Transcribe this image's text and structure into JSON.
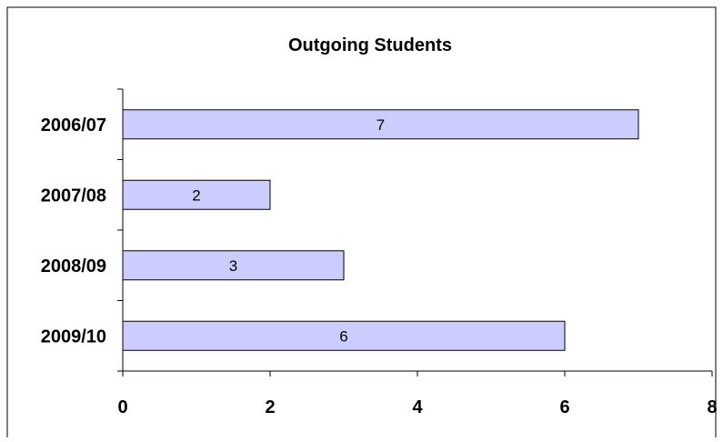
{
  "chart_data": {
    "type": "bar",
    "orientation": "horizontal",
    "title": "Outgoing Students",
    "xlabel": "",
    "ylabel": "",
    "categories": [
      "2006/07",
      "2007/08",
      "2008/09",
      "2009/10"
    ],
    "values": [
      7,
      2,
      3,
      6
    ],
    "data_labels": [
      "7",
      "2",
      "3",
      "6"
    ],
    "xlim": [
      0,
      8
    ],
    "x_ticks": [
      0,
      2,
      4,
      6,
      8
    ],
    "x_tick_labels": [
      "0",
      "2",
      "4",
      "6",
      "8"
    ],
    "grid": false,
    "legend": "none",
    "colors": {
      "bar_fill": "#ccccff",
      "bar_stroke": "#000000",
      "axis": "#000000",
      "text": "#000000"
    }
  }
}
